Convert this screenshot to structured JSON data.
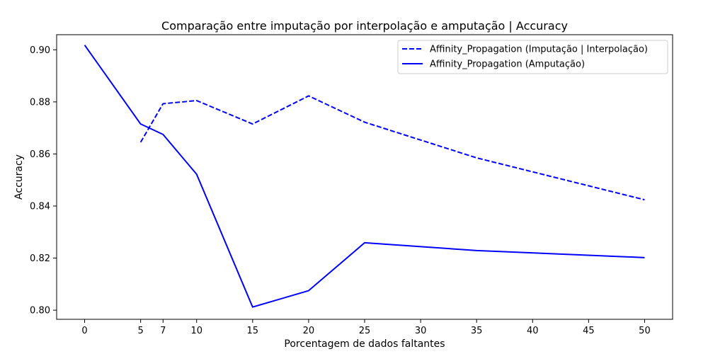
{
  "chart_data": {
    "type": "line",
    "title": "Comparação entre imputação por interpolação e amputação | Accuracy",
    "xlabel": "Porcentagem de dados faltantes",
    "ylabel": "Accuracy",
    "xlim": [
      -2.5,
      52.5
    ],
    "ylim": [
      0.7965,
      0.9058
    ],
    "xticks": [
      0,
      5,
      7,
      10,
      15,
      20,
      25,
      30,
      35,
      40,
      45,
      50
    ],
    "yticks": [
      0.8,
      0.82,
      0.84,
      0.86,
      0.88,
      0.9
    ],
    "ytick_labels": [
      "0.80",
      "0.82",
      "0.84",
      "0.86",
      "0.88",
      "0.90"
    ],
    "grid": false,
    "legend_position": "top-right",
    "series": [
      {
        "name": "Affinity_Propagation (Imputação | Interpolação)",
        "color": "#0000ff",
        "style": "dashed",
        "x": [
          5,
          7,
          10,
          15,
          20,
          25,
          35,
          50
        ],
        "y": [
          0.8645,
          0.8793,
          0.8805,
          0.8715,
          0.8823,
          0.8722,
          0.8585,
          0.8424
        ]
      },
      {
        "name": "Affinity_Propagation (Amputação)",
        "color": "#0000ff",
        "style": "solid",
        "x": [
          0,
          5,
          7,
          10,
          15,
          20,
          25,
          35,
          50
        ],
        "y": [
          0.9018,
          0.8715,
          0.8675,
          0.8522,
          0.8012,
          0.8075,
          0.8259,
          0.8229,
          0.8202
        ]
      }
    ]
  }
}
